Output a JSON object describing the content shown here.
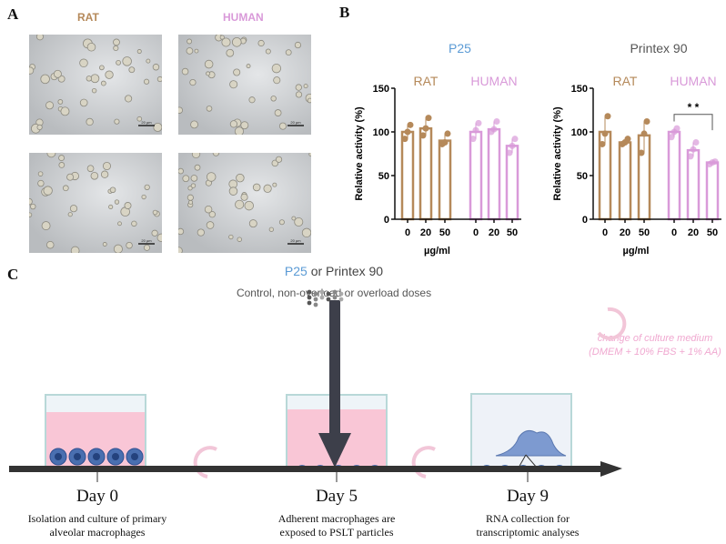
{
  "panels": {
    "a": "A",
    "b": "B",
    "c": "C"
  },
  "panel_a": {
    "rat": "RAT",
    "human": "HUMAN",
    "scale_bar": "20 µm"
  },
  "colors": {
    "rat": "#b5895a",
    "human": "#d99ad9",
    "p25": "#5b9bd5",
    "pink": "#f5c6d6",
    "cell": "#4a6fb0"
  },
  "chart_data": [
    {
      "type": "bar",
      "title": "P25",
      "ylabel": "Relative activity (%)",
      "xlabel": "µg/ml",
      "ylim": [
        0,
        150
      ],
      "yticks": [
        0,
        50,
        100,
        150
      ],
      "groups": [
        {
          "name": "RAT",
          "categories": [
            "0",
            "20",
            "50"
          ],
          "values": [
            100,
            104,
            90
          ],
          "points": [
            [
              92,
              100,
              108
            ],
            [
              96,
              104,
              116
            ],
            [
              86,
              88,
              98
            ]
          ]
        },
        {
          "name": "HUMAN",
          "categories": [
            "0",
            "20",
            "50"
          ],
          "values": [
            100,
            103,
            84
          ],
          "points": [
            [
              92,
              102,
              110
            ],
            [
              100,
              103,
              112
            ],
            [
              76,
              84,
              92
            ]
          ]
        }
      ]
    },
    {
      "type": "bar",
      "title": "Printex 90",
      "ylabel": "Relative activity (%)",
      "xlabel": "µg/ml",
      "ylim": [
        0,
        150
      ],
      "yticks": [
        0,
        50,
        100,
        150
      ],
      "groups": [
        {
          "name": "RAT",
          "categories": [
            "0",
            "20",
            "50"
          ],
          "values": [
            100,
            88,
            96
          ],
          "points": [
            [
              86,
              98,
              118
            ],
            [
              86,
              88,
              92
            ],
            [
              76,
              98,
              112
            ]
          ]
        },
        {
          "name": "HUMAN",
          "categories": [
            "0",
            "20",
            "50"
          ],
          "values": [
            100,
            79,
            65
          ],
          "points": [
            [
              94,
              100,
              104
            ],
            [
              72,
              80,
              88
            ],
            [
              63,
              65,
              66
            ]
          ]
        }
      ],
      "annotation": "* *"
    }
  ],
  "panel_c": {
    "particle_a": "P25",
    "or": " or ",
    "particle_b": "Printex 90",
    "doses": "Control, non-overload or overload doses",
    "medium_1": "change of culture medium",
    "medium_2": "(DMEM + 10% FBS + 1% AA)",
    "days": [
      {
        "label": "Day 0",
        "line1": "Isolation and culture of primary",
        "line2": "alveolar macrophages"
      },
      {
        "label": "Day 5",
        "line1": "Adherent macrophages are",
        "line2": "exposed to PSLT particles"
      },
      {
        "label": "Day 9",
        "line1": "RNA collection for",
        "line2": "transcriptomic analyses"
      }
    ]
  }
}
